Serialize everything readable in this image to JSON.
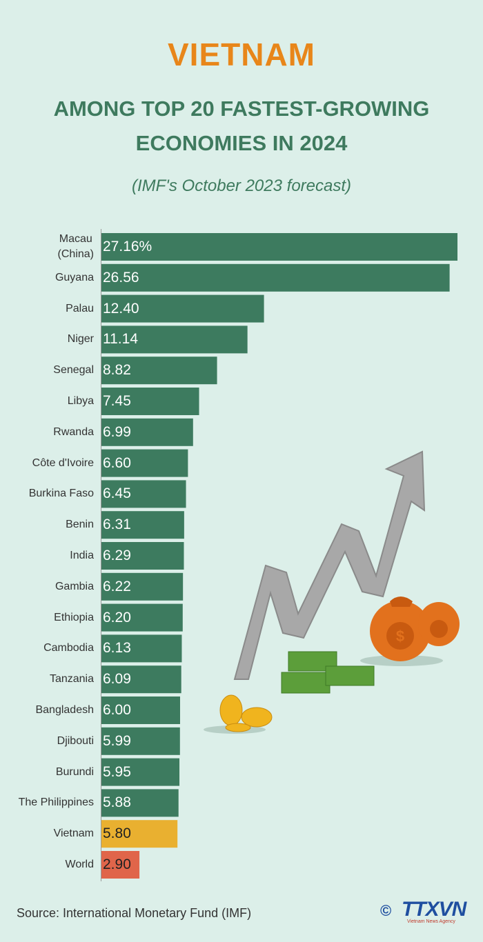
{
  "chart_data": {
    "type": "bar",
    "orientation": "horizontal",
    "title": "VIETNAM",
    "subtitle": [
      "AMONG TOP 20 FASTEST-GROWING",
      "ECONOMIES IN 2024"
    ],
    "note": "(IMF's October 2023 forecast)",
    "categories": [
      "Macau\n(China)",
      "Guyana",
      "Palau",
      "Niger",
      "Senegal",
      "Libya",
      "Rwanda",
      "Côte d'Ivoire",
      "Burkina Faso",
      "Benin",
      "India",
      "Gambia",
      "Ethiopia",
      "Cambodia",
      "Tanzania",
      "Bangladesh",
      "Djibouti",
      "Burundi",
      "The Philippines",
      "Vietnam",
      "World"
    ],
    "values": [
      27.16,
      26.56,
      12.4,
      11.14,
      8.82,
      7.45,
      6.99,
      6.6,
      6.45,
      6.31,
      6.29,
      6.22,
      6.2,
      6.13,
      6.09,
      6.0,
      5.99,
      5.95,
      5.88,
      5.8,
      2.9
    ],
    "value_labels": [
      "27.16%",
      "26.56",
      "12.40",
      "11.14",
      "8.82",
      "7.45",
      "6.99",
      "6.60",
      "6.45",
      "6.31",
      "6.29",
      "6.22",
      "6.20",
      "6.13",
      "6.09",
      "6.00",
      "5.99",
      "5.95",
      "5.88",
      "5.80",
      "2.90"
    ],
    "colors": [
      "#3d7b5f",
      "#3d7b5f",
      "#3d7b5f",
      "#3d7b5f",
      "#3d7b5f",
      "#3d7b5f",
      "#3d7b5f",
      "#3d7b5f",
      "#3d7b5f",
      "#3d7b5f",
      "#3d7b5f",
      "#3d7b5f",
      "#3d7b5f",
      "#3d7b5f",
      "#3d7b5f",
      "#3d7b5f",
      "#3d7b5f",
      "#3d7b5f",
      "#3d7b5f",
      "#e9b030",
      "#e0654a"
    ],
    "source": "Source: International Monetary Fund (IMF)",
    "logo": "TTXVN",
    "logo_sub": "Vietnam News Agency"
  }
}
